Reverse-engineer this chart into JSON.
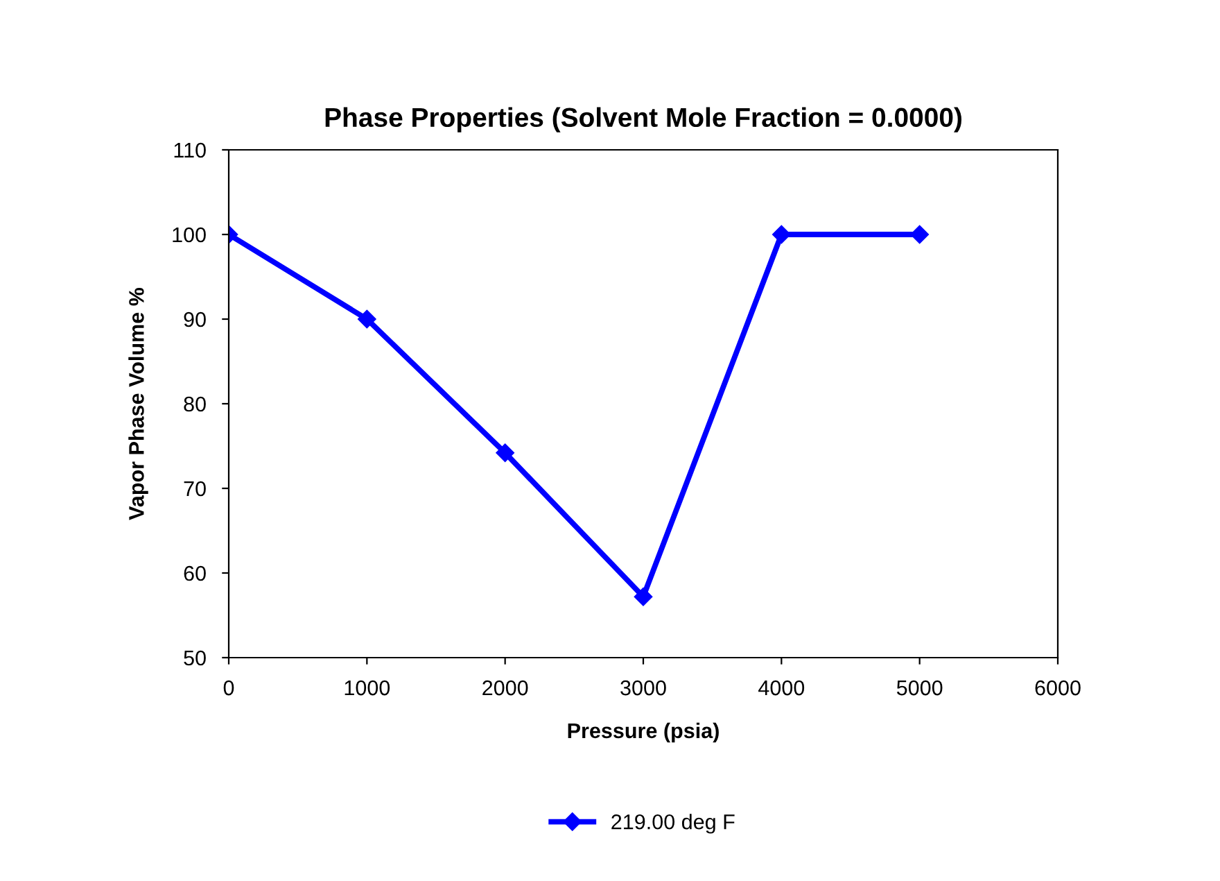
{
  "chart_data": {
    "type": "line",
    "title": "Phase Properties (Solvent Mole Fraction = 0.0000)",
    "xlabel": "Pressure (psia)",
    "ylabel": "Vapor Phase Volume %",
    "x": [
      0,
      1000,
      2000,
      3000,
      4000,
      5000
    ],
    "series": [
      {
        "name": "219.00 deg F",
        "color": "#0000ff",
        "values": [
          100,
          90,
          74.2,
          57.2,
          100,
          100
        ]
      }
    ],
    "xlim": [
      0,
      6000
    ],
    "xticks": [
      0,
      1000,
      2000,
      3000,
      4000,
      5000,
      6000
    ],
    "ylim": [
      50,
      110
    ],
    "yticks": [
      50,
      60,
      70,
      80,
      90,
      100,
      110
    ],
    "grid": false,
    "legend": "bottom",
    "marker": "diamond",
    "line_style": "solid"
  }
}
